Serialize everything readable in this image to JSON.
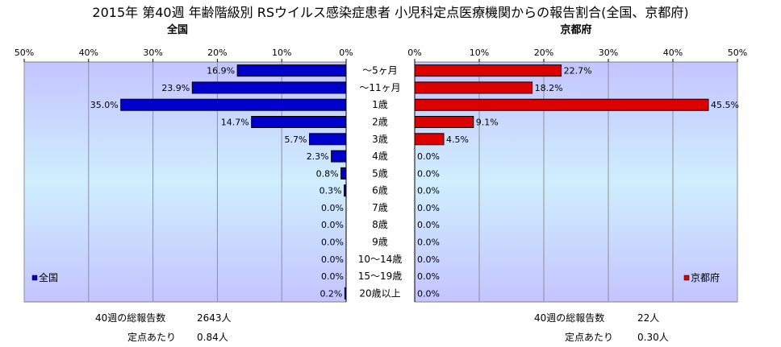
{
  "title": "2015年 第40週 年齢階級別 RSウイルス感染症患者 小児科定点医療機関からの報告割合(全国、京都府)",
  "chart_data": [
    {
      "type": "bar",
      "orientation": "horizontal",
      "direction": "right-to-left",
      "title": "全国",
      "categories": [
        "～5ヶ月",
        "～11ヶ月",
        "1歳",
        "2歳",
        "3歳",
        "4歳",
        "5歳",
        "6歳",
        "7歳",
        "8歳",
        "9歳",
        "10～14歳",
        "15～19歳",
        "20歳以上"
      ],
      "series": [
        {
          "name": "全国",
          "values": [
            16.9,
            23.9,
            35.0,
            14.7,
            5.7,
            2.3,
            0.8,
            0.3,
            0.0,
            0.0,
            0.0,
            0.0,
            0.0,
            0.2
          ],
          "color": "#0000cc"
        }
      ],
      "value_labels": [
        "16.9%",
        "23.9%",
        "35.0%",
        "14.7%",
        "5.7%",
        "2.3%",
        "0.8%",
        "0.3%",
        "0.0%",
        "0.0%",
        "0.0%",
        "0.0%",
        "0.0%",
        "0.2%"
      ],
      "xlim": [
        0,
        50
      ],
      "ticks": [
        "0%",
        "10%",
        "20%",
        "30%",
        "40%",
        "50%"
      ],
      "grid": true,
      "legend": "bottom-left"
    },
    {
      "type": "bar",
      "orientation": "horizontal",
      "direction": "left-to-right",
      "title": "京都府",
      "categories": [
        "～5ヶ月",
        "～11ヶ月",
        "1歳",
        "2歳",
        "3歳",
        "4歳",
        "5歳",
        "6歳",
        "7歳",
        "8歳",
        "9歳",
        "10～14歳",
        "15～19歳",
        "20歳以上"
      ],
      "series": [
        {
          "name": "京都府",
          "values": [
            22.7,
            18.2,
            45.5,
            9.1,
            4.5,
            0.0,
            0.0,
            0.0,
            0.0,
            0.0,
            0.0,
            0.0,
            0.0,
            0.0
          ],
          "color": "#dd0000"
        }
      ],
      "value_labels": [
        "22.7%",
        "18.2%",
        "45.5%",
        "9.1%",
        "4.5%",
        "0.0%",
        "0.0%",
        "0.0%",
        "0.0%",
        "0.0%",
        "0.0%",
        "0.0%",
        "0.0%",
        "0.0%"
      ],
      "xlim": [
        0,
        50
      ],
      "ticks": [
        "0%",
        "10%",
        "20%",
        "30%",
        "40%",
        "50%"
      ],
      "grid": true,
      "legend": "bottom-right"
    }
  ],
  "footer": {
    "national_total_label": "40週の総報告数",
    "national_total_value": "2643人",
    "national_per_label": "定点あたり",
    "national_per_value": "0.84人",
    "kyoto_total_label": "40週の総報告数",
    "kyoto_total_value": "22人",
    "kyoto_per_label": "定点あたり",
    "kyoto_per_value": "0.30人"
  }
}
